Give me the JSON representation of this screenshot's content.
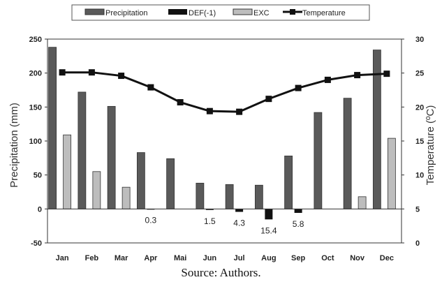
{
  "chart_data": {
    "type": "bar",
    "categories": [
      "Jan",
      "Feb",
      "Mar",
      "Apr",
      "Mai",
      "Jun",
      "Jul",
      "Aug",
      "Sep",
      "Oct",
      "Nov",
      "Dec"
    ],
    "series": [
      {
        "name": "Precipitation",
        "kind": "bar",
        "axis": "left",
        "color": "#5a5a5a",
        "values": [
          238,
          172,
          151,
          83,
          74,
          38,
          36,
          35,
          78,
          142,
          163,
          234
        ]
      },
      {
        "name": "DEF(-1)",
        "kind": "bar",
        "axis": "left",
        "color": "#111111",
        "values": [
          0,
          0,
          0,
          -0.3,
          0,
          -1.5,
          -4.3,
          -15.4,
          -5.8,
          0,
          0,
          0
        ],
        "data_labels": [
          "",
          "",
          "",
          "0.3",
          "",
          "1.5",
          "4.3",
          "15.4",
          "5.8",
          "",
          "",
          ""
        ]
      },
      {
        "name": "EXC",
        "kind": "bar",
        "axis": "left",
        "color": "#bdbdbd",
        "values": [
          109,
          55,
          32,
          0,
          0,
          0,
          0,
          0,
          0,
          0,
          18,
          104
        ]
      },
      {
        "name": "Temperature",
        "kind": "line",
        "axis": "right",
        "color": "#111111",
        "values": [
          25.1,
          25.1,
          24.6,
          22.9,
          20.7,
          19.4,
          19.3,
          21.2,
          22.8,
          24.0,
          24.7,
          24.9
        ]
      }
    ],
    "ylabel": "Precipitation (mm)",
    "ylim": [
      -50,
      250
    ],
    "yticks": [
      "250",
      "200",
      "150",
      "100",
      "50",
      "0",
      "-50"
    ],
    "y2label": "Temperature (ºC)",
    "y2lim": [
      0,
      30
    ],
    "y2ticks": [
      "30",
      "25",
      "20",
      "15",
      "10",
      "5",
      "0"
    ],
    "legend_position": "top",
    "grid": false
  },
  "caption": "Source: Authors."
}
